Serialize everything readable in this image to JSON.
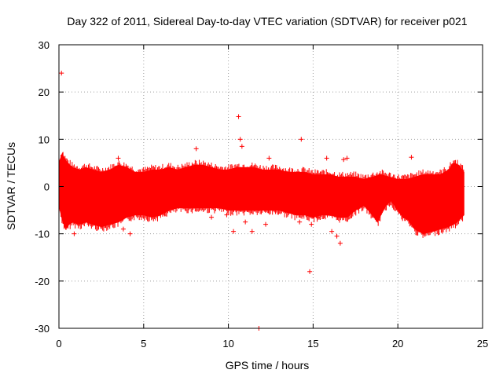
{
  "chart_data": {
    "type": "scatter",
    "title": "Day 322 of 2011, Sidereal Day-to-day VTEC variation (SDTVAR) for receiver p021",
    "xlabel": "GPS time / hours",
    "ylabel": "SDTVAR / TECUs",
    "xlim": [
      0,
      25
    ],
    "ylim": [
      -30,
      30
    ],
    "x_ticks": [
      0,
      5,
      10,
      15,
      20,
      25
    ],
    "y_ticks": [
      -30,
      -20,
      -10,
      0,
      10,
      20,
      30
    ],
    "grid": true,
    "marker": "+",
    "color": "#ff0000",
    "series": [
      {
        "name": "p021 SDTVAR",
        "time_range": [
          0,
          23.9
        ],
        "band_upper": [
          [
            0.0,
            5.0
          ],
          [
            0.2,
            7.0
          ],
          [
            0.3,
            6.0
          ],
          [
            0.5,
            5.0
          ],
          [
            0.8,
            4.0
          ],
          [
            1.2,
            3.5
          ],
          [
            1.6,
            4.0
          ],
          [
            2.0,
            3.5
          ],
          [
            2.5,
            3.0
          ],
          [
            3.0,
            3.5
          ],
          [
            3.5,
            4.5
          ],
          [
            4.0,
            4.0
          ],
          [
            4.5,
            3.0
          ],
          [
            5.0,
            3.0
          ],
          [
            5.5,
            3.5
          ],
          [
            6.0,
            3.5
          ],
          [
            6.5,
            4.0
          ],
          [
            7.0,
            3.5
          ],
          [
            7.5,
            4.0
          ],
          [
            8.0,
            4.5
          ],
          [
            8.5,
            4.5
          ],
          [
            9.0,
            4.0
          ],
          [
            9.5,
            3.5
          ],
          [
            10.0,
            3.5
          ],
          [
            10.5,
            4.0
          ],
          [
            11.0,
            4.0
          ],
          [
            11.5,
            4.0
          ],
          [
            12.0,
            3.5
          ],
          [
            12.5,
            3.5
          ],
          [
            13.0,
            3.5
          ],
          [
            13.5,
            3.0
          ],
          [
            14.0,
            3.0
          ],
          [
            14.5,
            3.0
          ],
          [
            15.0,
            2.5
          ],
          [
            15.5,
            2.5
          ],
          [
            16.0,
            2.5
          ],
          [
            16.5,
            2.0
          ],
          [
            17.0,
            2.0
          ],
          [
            17.5,
            2.0
          ],
          [
            18.0,
            1.5
          ],
          [
            18.5,
            2.0
          ],
          [
            19.0,
            2.5
          ],
          [
            19.5,
            2.0
          ],
          [
            20.0,
            1.5
          ],
          [
            20.5,
            1.5
          ],
          [
            21.0,
            2.0
          ],
          [
            21.5,
            2.5
          ],
          [
            22.0,
            2.5
          ],
          [
            22.5,
            2.5
          ],
          [
            23.0,
            3.5
          ],
          [
            23.3,
            5.0
          ],
          [
            23.6,
            4.5
          ],
          [
            23.9,
            3.0
          ]
        ],
        "band_lower": [
          [
            0.0,
            -4.0
          ],
          [
            0.2,
            -7.0
          ],
          [
            0.4,
            -9.0
          ],
          [
            0.6,
            -8.0
          ],
          [
            0.8,
            -7.5
          ],
          [
            1.2,
            -8.0
          ],
          [
            1.6,
            -7.5
          ],
          [
            2.0,
            -8.0
          ],
          [
            2.5,
            -8.5
          ],
          [
            3.0,
            -8.0
          ],
          [
            3.5,
            -7.5
          ],
          [
            4.0,
            -6.5
          ],
          [
            4.5,
            -6.0
          ],
          [
            5.0,
            -6.0
          ],
          [
            5.5,
            -6.5
          ],
          [
            6.0,
            -6.0
          ],
          [
            6.5,
            -5.0
          ],
          [
            7.0,
            -4.5
          ],
          [
            7.5,
            -4.5
          ],
          [
            8.0,
            -4.5
          ],
          [
            8.5,
            -4.5
          ],
          [
            9.0,
            -4.5
          ],
          [
            9.5,
            -4.5
          ],
          [
            10.0,
            -5.0
          ],
          [
            10.5,
            -5.0
          ],
          [
            11.0,
            -5.0
          ],
          [
            11.5,
            -5.0
          ],
          [
            12.0,
            -5.0
          ],
          [
            12.5,
            -5.0
          ],
          [
            13.0,
            -5.0
          ],
          [
            13.5,
            -5.5
          ],
          [
            14.0,
            -6.0
          ],
          [
            14.5,
            -6.0
          ],
          [
            15.0,
            -6.5
          ],
          [
            15.5,
            -6.0
          ],
          [
            16.0,
            -6.0
          ],
          [
            16.5,
            -6.5
          ],
          [
            17.0,
            -6.5
          ],
          [
            17.5,
            -5.0
          ],
          [
            18.0,
            -4.0
          ],
          [
            18.5,
            -6.0
          ],
          [
            18.8,
            -7.5
          ],
          [
            19.0,
            -6.0
          ],
          [
            19.3,
            -4.0
          ],
          [
            19.6,
            -3.0
          ],
          [
            20.0,
            -5.0
          ],
          [
            20.3,
            -6.5
          ],
          [
            20.6,
            -7.0
          ],
          [
            21.0,
            -9.0
          ],
          [
            21.5,
            -10.0
          ],
          [
            22.0,
            -9.5
          ],
          [
            22.5,
            -9.0
          ],
          [
            23.0,
            -8.5
          ],
          [
            23.5,
            -7.5
          ],
          [
            23.9,
            -6.0
          ]
        ],
        "outliers": [
          [
            0.15,
            24.0
          ],
          [
            0.9,
            -10.0
          ],
          [
            3.5,
            6.0
          ],
          [
            3.8,
            -9.0
          ],
          [
            4.2,
            -10.0
          ],
          [
            8.1,
            8.0
          ],
          [
            9.0,
            -6.5
          ],
          [
            9.9,
            -6.0
          ],
          [
            10.3,
            -9.5
          ],
          [
            10.6,
            14.8
          ],
          [
            10.7,
            10.0
          ],
          [
            10.8,
            8.5
          ],
          [
            11.0,
            -7.5
          ],
          [
            11.4,
            -9.5
          ],
          [
            11.8,
            -30.0
          ],
          [
            12.2,
            -8.0
          ],
          [
            12.4,
            6.0
          ],
          [
            14.2,
            -7.5
          ],
          [
            14.3,
            10.0
          ],
          [
            14.8,
            -18.0
          ],
          [
            14.9,
            -8.0
          ],
          [
            15.3,
            -6.5
          ],
          [
            15.8,
            6.0
          ],
          [
            16.1,
            -9.5
          ],
          [
            16.4,
            -10.5
          ],
          [
            16.6,
            -12.0
          ],
          [
            16.8,
            5.7
          ],
          [
            17.0,
            6.0
          ],
          [
            20.8,
            6.2
          ]
        ]
      }
    ]
  }
}
